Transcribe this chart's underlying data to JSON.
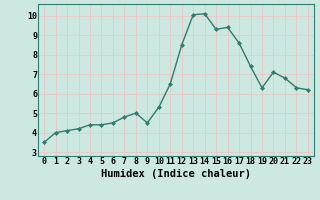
{
  "x": [
    0,
    1,
    2,
    3,
    4,
    5,
    6,
    7,
    8,
    9,
    10,
    11,
    12,
    13,
    14,
    15,
    16,
    17,
    18,
    19,
    20,
    21,
    22,
    23
  ],
  "y": [
    3.5,
    4.0,
    4.1,
    4.2,
    4.4,
    4.4,
    4.5,
    4.8,
    5.0,
    4.5,
    5.3,
    6.5,
    8.5,
    10.05,
    10.1,
    9.3,
    9.4,
    8.6,
    7.4,
    6.3,
    7.1,
    6.8,
    6.3,
    6.2
  ],
  "line_color": "#2e7d6e",
  "marker_color": "#2e7d6e",
  "bg_color": "#cce8e0",
  "grid_color": "#e8c8c8",
  "xlabel": "Humidex (Indice chaleur)",
  "xlabel_fontsize": 7.5,
  "ylabel_ticks": [
    3,
    4,
    5,
    6,
    7,
    8,
    9,
    10
  ],
  "xtick_labels": [
    "0",
    "1",
    "2",
    "3",
    "4",
    "5",
    "6",
    "7",
    "8",
    "9",
    "10",
    "11",
    "12",
    "13",
    "14",
    "15",
    "16",
    "17",
    "18",
    "19",
    "20",
    "21",
    "22",
    "23"
  ],
  "ylim": [
    2.8,
    10.6
  ],
  "xlim": [
    -0.5,
    23.5
  ],
  "tick_fontsize": 6.0
}
